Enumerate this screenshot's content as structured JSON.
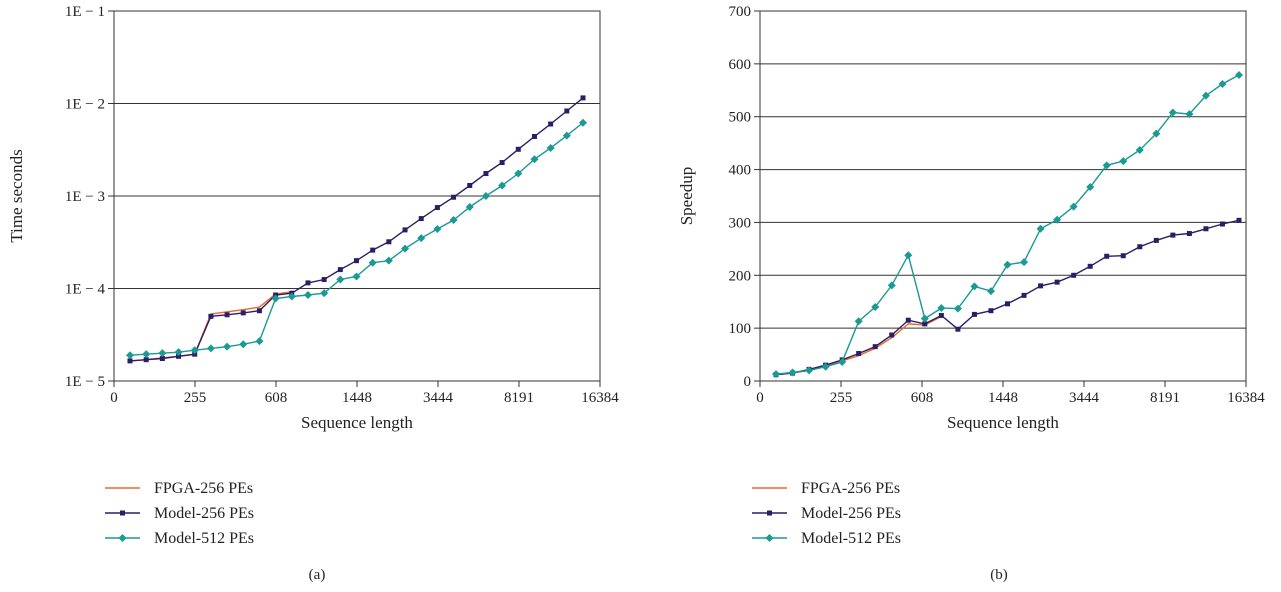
{
  "chart_data": [
    {
      "type": "line",
      "panel_label": "(a)",
      "xlabel": "Sequence length",
      "ylabel": "Time seconds",
      "yscale": "log",
      "ylim": [
        1e-05,
        0.1
      ],
      "y_tick_labels": [
        "1E − 1",
        "1E − 2",
        "1E − 3",
        "1E − 4",
        "1E − 5"
      ],
      "x_tick_labels": [
        "0",
        "255",
        "608",
        "1448",
        "3444",
        "8191",
        "16384"
      ],
      "grid": "horizontal",
      "legend_position": "bottom-left",
      "series": [
        {
          "name": "FPGA-256 PEs",
          "color": "#e8692e",
          "marker": "none",
          "values": [
            1.65e-05,
            1.7e-05,
            1.78e-05,
            1.85e-05,
            1.95e-05,
            5.3e-05,
            5.6e-05,
            5.9e-05,
            6.3e-05,
            8.7e-05,
            9.2e-05
          ]
        },
        {
          "name": "Model-256 PEs",
          "color": "#2c1e66",
          "marker": "square",
          "values": [
            1.65e-05,
            1.7e-05,
            1.75e-05,
            1.85e-05,
            1.95e-05,
            5e-05,
            5.2e-05,
            5.45e-05,
            5.75e-05,
            8.5e-05,
            8.9e-05,
            0.000115,
            0.000125,
            0.00016,
            0.0002,
            0.00026,
            0.00032,
            0.00043,
            0.00057,
            0.00075,
            0.00097,
            0.0013,
            0.00175,
            0.0023,
            0.0032,
            0.0044,
            0.006,
            0.0083,
            0.0115
          ]
        },
        {
          "name": "Model-512 PEs",
          "color": "#1a9a94",
          "marker": "diamond",
          "values": [
            1.9e-05,
            1.95e-05,
            2e-05,
            2.05e-05,
            2.15e-05,
            2.25e-05,
            2.35e-05,
            2.5e-05,
            2.7e-05,
            7.8e-05,
            8.2e-05,
            8.5e-05,
            8.9e-05,
            0.000125,
            0.000135,
            0.00019,
            0.0002,
            0.00027,
            0.00035,
            0.00044,
            0.00055,
            0.00076,
            0.001,
            0.0013,
            0.00175,
            0.0025,
            0.0033,
            0.0045,
            0.0062
          ]
        }
      ]
    },
    {
      "type": "line",
      "panel_label": "(b)",
      "xlabel": "Sequence length",
      "ylabel": "Speedup",
      "ylim": [
        0,
        700
      ],
      "y_tick_labels": [
        "700",
        "600",
        "500",
        "400",
        "300",
        "200",
        "100",
        "0"
      ],
      "x_tick_labels": [
        "0",
        "255",
        "608",
        "1448",
        "3444",
        "8191",
        "16384"
      ],
      "grid": "horizontal",
      "legend_position": "bottom-left",
      "series": [
        {
          "name": "FPGA-256 PEs",
          "color": "#e8692e",
          "marker": "none",
          "values": [
            12,
            15,
            20,
            28,
            38,
            48,
            62,
            82,
            108,
            106,
            122
          ]
        },
        {
          "name": "Model-256 PEs",
          "color": "#2c1e66",
          "marker": "square",
          "values": [
            12,
            15,
            22,
            30,
            40,
            52,
            65,
            87,
            115,
            108,
            124,
            98,
            126,
            133,
            146,
            162,
            180,
            187,
            200,
            217,
            236,
            237,
            254,
            266,
            276,
            279,
            288,
            297,
            304
          ]
        },
        {
          "name": "Model-512 PEs",
          "color": "#1a9a94",
          "marker": "diamond",
          "values": [
            13,
            16,
            20,
            27,
            36,
            113,
            140,
            181,
            238,
            118,
            138,
            137,
            179,
            170,
            220,
            225,
            288,
            305,
            330,
            367,
            408,
            416,
            437,
            468,
            508,
            505,
            540,
            562,
            579
          ]
        }
      ]
    }
  ]
}
